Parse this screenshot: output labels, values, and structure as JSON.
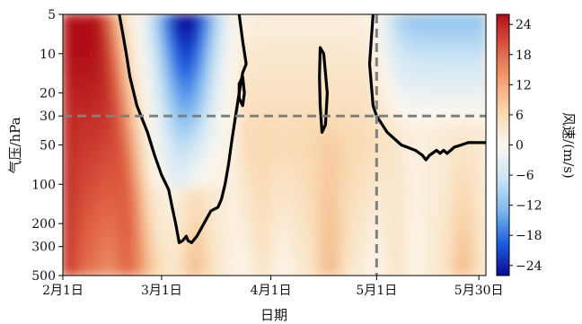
{
  "chart_data": {
    "type": "heatmap",
    "title": "",
    "xlabel": "日期",
    "ylabel": "气压/hPa",
    "colorbar_label": "风速/(m/s)",
    "x_ticks": [
      "2月1日",
      "3月1日",
      "4月1日",
      "5月1日",
      "5月30日"
    ],
    "x_tick_days": [
      0,
      28,
      59,
      89,
      118
    ],
    "x_range_days": [
      0,
      120
    ],
    "y_scale": "log",
    "y_ticks": [
      5,
      10,
      20,
      30,
      50,
      100,
      200,
      300,
      500
    ],
    "ylim": [
      500,
      5
    ],
    "colorbar_ticks": [
      24,
      18,
      12,
      6,
      0,
      -6,
      -12,
      -18,
      -24
    ],
    "colorbar_range": [
      -26,
      26
    ],
    "colormap": [
      "#08089c",
      "#1f5fe0",
      "#7db9ee",
      "#cfe6f5",
      "#fbf7ef",
      "#f9d8ae",
      "#f1a173",
      "#dd5a3f",
      "#b01018"
    ],
    "zero_contour": {
      "winter_easterly": [
        [
          16,
          5
        ],
        [
          17,
          7
        ],
        [
          18,
          10
        ],
        [
          19,
          15
        ],
        [
          21,
          25
        ],
        [
          24,
          40
        ],
        [
          26,
          60
        ],
        [
          28,
          85
        ],
        [
          30,
          110
        ],
        [
          31,
          150
        ],
        [
          32,
          200
        ],
        [
          33,
          280
        ],
        [
          34,
          270
        ],
        [
          35,
          250
        ],
        [
          35.5,
          270
        ],
        [
          36.5,
          280
        ],
        [
          38,
          250
        ],
        [
          40,
          200
        ],
        [
          42,
          160
        ],
        [
          44,
          150
        ],
        [
          45,
          130
        ],
        [
          46,
          100
        ],
        [
          47,
          70
        ],
        [
          48,
          45
        ],
        [
          49,
          30
        ],
        [
          50,
          20
        ],
        [
          51,
          14
        ],
        [
          52,
          12
        ],
        [
          51,
          8
        ],
        [
          50,
          5
        ]
      ],
      "small_closed_1": [
        [
          50,
          17
        ],
        [
          51,
          15
        ],
        [
          51.5,
          20
        ],
        [
          51,
          25
        ],
        [
          50,
          22
        ],
        [
          50,
          17
        ]
      ],
      "small_closed_2": [
        [
          73,
          9
        ],
        [
          74,
          10
        ],
        [
          75,
          20
        ],
        [
          74.5,
          35
        ],
        [
          73.5,
          40
        ],
        [
          73,
          25
        ],
        [
          72.8,
          15
        ],
        [
          73,
          9
        ]
      ],
      "summer_easterly": [
        [
          88,
          5
        ],
        [
          87,
          12
        ],
        [
          88,
          25
        ],
        [
          89,
          30
        ],
        [
          92,
          40
        ],
        [
          96,
          50
        ],
        [
          100,
          55
        ],
        [
          102,
          60
        ],
        [
          103,
          65
        ],
        [
          104,
          60
        ],
        [
          106,
          55
        ],
        [
          107,
          58
        ],
        [
          108,
          55
        ],
        [
          109,
          58
        ],
        [
          110,
          55
        ],
        [
          111,
          52
        ],
        [
          113,
          50
        ],
        [
          115,
          48
        ],
        [
          120,
          48
        ]
      ]
    },
    "reference_lines": {
      "pressure_hPa": 30,
      "day": 89
    }
  }
}
